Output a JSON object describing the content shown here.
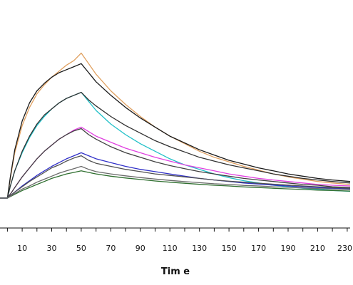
{
  "chart_data": {
    "type": "line",
    "title": "",
    "xlabel": "Tim e",
    "ylabel": "",
    "xlim": [
      -5,
      232
    ],
    "ylim": [
      -12,
      100
    ],
    "grid": false,
    "legend": "none",
    "x_ticks": [
      -10,
      0,
      10,
      20,
      30,
      40,
      50,
      60,
      70,
      80,
      90,
      100,
      110,
      120,
      130,
      140,
      150,
      160,
      170,
      180,
      190,
      200,
      210,
      220,
      230
    ],
    "x_tick_labels": [
      {
        "value": 10,
        "text": "10"
      },
      {
        "value": 30,
        "text": "30"
      },
      {
        "value": 50,
        "text": "50"
      },
      {
        "value": 70,
        "text": "70"
      },
      {
        "value": 90,
        "text": "90"
      },
      {
        "value": 110,
        "text": "110"
      },
      {
        "value": 130,
        "text": "130"
      },
      {
        "value": 150,
        "text": "150"
      },
      {
        "value": 170,
        "text": "170"
      },
      {
        "value": 190,
        "text": "190"
      },
      {
        "value": 210,
        "text": "210"
      },
      {
        "value": 230,
        "text": "230"
      }
    ],
    "series": [
      {
        "color": "#e0a060",
        "points": [
          [
            -5,
            0
          ],
          [
            0,
            0
          ],
          [
            2,
            13
          ],
          [
            5,
            30
          ],
          [
            10,
            48
          ],
          [
            15,
            60
          ],
          [
            20,
            69
          ],
          [
            25,
            75
          ],
          [
            30,
            80
          ],
          [
            35,
            84
          ],
          [
            40,
            88
          ],
          [
            45,
            91
          ],
          [
            50,
            96
          ],
          [
            55,
            89
          ],
          [
            60,
            82
          ],
          [
            70,
            71
          ],
          [
            80,
            62
          ],
          [
            90,
            54
          ],
          [
            100,
            47
          ],
          [
            110,
            41
          ],
          [
            120,
            36
          ],
          [
            130,
            31
          ],
          [
            140,
            27
          ],
          [
            150,
            24
          ],
          [
            160,
            21
          ],
          [
            170,
            18.5
          ],
          [
            180,
            16
          ],
          [
            190,
            14
          ],
          [
            200,
            12.5
          ],
          [
            210,
            11
          ],
          [
            220,
            10
          ],
          [
            232,
            9
          ]
        ]
      },
      {
        "color": "#1a1a1a",
        "points": [
          [
            -5,
            0
          ],
          [
            0,
            0
          ],
          [
            2,
            14
          ],
          [
            5,
            32
          ],
          [
            10,
            51
          ],
          [
            15,
            63
          ],
          [
            20,
            71
          ],
          [
            25,
            76
          ],
          [
            30,
            80
          ],
          [
            35,
            83
          ],
          [
            40,
            85
          ],
          [
            45,
            87
          ],
          [
            50,
            89
          ],
          [
            55,
            83
          ],
          [
            60,
            77
          ],
          [
            70,
            68
          ],
          [
            80,
            60
          ],
          [
            90,
            53
          ],
          [
            100,
            47
          ],
          [
            110,
            41
          ],
          [
            120,
            36.5
          ],
          [
            130,
            32
          ],
          [
            140,
            28.5
          ],
          [
            150,
            25
          ],
          [
            160,
            22.5
          ],
          [
            170,
            20
          ],
          [
            180,
            18
          ],
          [
            190,
            16
          ],
          [
            200,
            14.5
          ],
          [
            210,
            13
          ],
          [
            220,
            12
          ],
          [
            232,
            11
          ]
        ]
      },
      {
        "color": "#20c0c8",
        "points": [
          [
            -5,
            0
          ],
          [
            0,
            0
          ],
          [
            2,
            8
          ],
          [
            5,
            18
          ],
          [
            10,
            30
          ],
          [
            15,
            40
          ],
          [
            20,
            48
          ],
          [
            25,
            54
          ],
          [
            30,
            59
          ],
          [
            35,
            63
          ],
          [
            40,
            66
          ],
          [
            45,
            68
          ],
          [
            50,
            70
          ],
          [
            55,
            64
          ],
          [
            60,
            58
          ],
          [
            70,
            49
          ],
          [
            80,
            42
          ],
          [
            90,
            36
          ],
          [
            100,
            31
          ],
          [
            110,
            26
          ],
          [
            120,
            22
          ],
          [
            130,
            19
          ],
          [
            140,
            16
          ],
          [
            150,
            13.5
          ],
          [
            160,
            11.5
          ],
          [
            170,
            10
          ],
          [
            180,
            8.5
          ],
          [
            190,
            7.5
          ],
          [
            200,
            6.5
          ],
          [
            210,
            6
          ],
          [
            220,
            5
          ],
          [
            232,
            4.5
          ]
        ]
      },
      {
        "color": "#303030",
        "points": [
          [
            -5,
            0
          ],
          [
            0,
            0
          ],
          [
            2,
            8
          ],
          [
            5,
            18
          ],
          [
            10,
            31
          ],
          [
            15,
            41
          ],
          [
            20,
            49
          ],
          [
            25,
            55
          ],
          [
            30,
            59
          ],
          [
            35,
            63
          ],
          [
            40,
            66
          ],
          [
            45,
            68
          ],
          [
            50,
            70
          ],
          [
            55,
            65
          ],
          [
            60,
            61
          ],
          [
            70,
            54
          ],
          [
            80,
            48
          ],
          [
            90,
            43
          ],
          [
            100,
            38
          ],
          [
            110,
            34
          ],
          [
            120,
            30.5
          ],
          [
            130,
            27
          ],
          [
            140,
            24.5
          ],
          [
            150,
            22
          ],
          [
            160,
            20
          ],
          [
            170,
            18
          ],
          [
            180,
            16
          ],
          [
            190,
            14.5
          ],
          [
            200,
            13
          ],
          [
            210,
            12
          ],
          [
            220,
            11
          ],
          [
            232,
            10
          ]
        ]
      },
      {
        "color": "#e040e0",
        "points": [
          [
            -5,
            0
          ],
          [
            0,
            0
          ],
          [
            3,
            4
          ],
          [
            5,
            7
          ],
          [
            10,
            14
          ],
          [
            15,
            20
          ],
          [
            20,
            26
          ],
          [
            25,
            31
          ],
          [
            30,
            35
          ],
          [
            35,
            39
          ],
          [
            40,
            42
          ],
          [
            45,
            45
          ],
          [
            50,
            47
          ],
          [
            55,
            44
          ],
          [
            60,
            41
          ],
          [
            70,
            37
          ],
          [
            80,
            33
          ],
          [
            90,
            30
          ],
          [
            100,
            27
          ],
          [
            110,
            24.5
          ],
          [
            120,
            22
          ],
          [
            130,
            20
          ],
          [
            140,
            18
          ],
          [
            150,
            16
          ],
          [
            160,
            14.5
          ],
          [
            170,
            13
          ],
          [
            180,
            12
          ],
          [
            190,
            11
          ],
          [
            200,
            10
          ],
          [
            210,
            9
          ],
          [
            220,
            8.5
          ],
          [
            232,
            8
          ]
        ]
      },
      {
        "color": "#404040",
        "points": [
          [
            -5,
            0
          ],
          [
            0,
            0
          ],
          [
            3,
            4
          ],
          [
            5,
            7
          ],
          [
            10,
            14
          ],
          [
            15,
            20
          ],
          [
            20,
            26
          ],
          [
            25,
            31
          ],
          [
            30,
            35
          ],
          [
            35,
            39
          ],
          [
            40,
            42
          ],
          [
            45,
            44.5
          ],
          [
            50,
            46
          ],
          [
            55,
            42
          ],
          [
            60,
            39
          ],
          [
            70,
            34
          ],
          [
            80,
            30
          ],
          [
            90,
            27
          ],
          [
            100,
            24
          ],
          [
            110,
            21.5
          ],
          [
            120,
            19.5
          ],
          [
            130,
            17.5
          ],
          [
            140,
            16
          ],
          [
            150,
            14.5
          ],
          [
            160,
            13
          ],
          [
            170,
            12
          ],
          [
            180,
            11
          ],
          [
            190,
            10
          ],
          [
            200,
            9
          ],
          [
            210,
            8.5
          ],
          [
            220,
            7.5
          ],
          [
            232,
            7
          ]
        ]
      },
      {
        "color": "#3030c8",
        "points": [
          [
            -5,
            0
          ],
          [
            0,
            0
          ],
          [
            5,
            4
          ],
          [
            10,
            8
          ],
          [
            15,
            11.5
          ],
          [
            20,
            15
          ],
          [
            25,
            18
          ],
          [
            30,
            21
          ],
          [
            35,
            23.5
          ],
          [
            40,
            26
          ],
          [
            45,
            28
          ],
          [
            50,
            30
          ],
          [
            55,
            28
          ],
          [
            60,
            26
          ],
          [
            70,
            23.5
          ],
          [
            80,
            21
          ],
          [
            90,
            19
          ],
          [
            100,
            17.5
          ],
          [
            110,
            16
          ],
          [
            120,
            14.5
          ],
          [
            130,
            13
          ],
          [
            140,
            12
          ],
          [
            150,
            11
          ],
          [
            160,
            10
          ],
          [
            170,
            9.3
          ],
          [
            180,
            8.6
          ],
          [
            190,
            8
          ],
          [
            200,
            7.5
          ],
          [
            210,
            7
          ],
          [
            220,
            6.5
          ],
          [
            232,
            6
          ]
        ]
      },
      {
        "color": "#505050",
        "points": [
          [
            -5,
            0
          ],
          [
            0,
            0
          ],
          [
            5,
            4
          ],
          [
            10,
            7.5
          ],
          [
            15,
            11
          ],
          [
            20,
            14
          ],
          [
            25,
            17
          ],
          [
            30,
            20
          ],
          [
            35,
            22
          ],
          [
            40,
            24.5
          ],
          [
            45,
            26.5
          ],
          [
            50,
            28
          ],
          [
            55,
            25
          ],
          [
            60,
            23
          ],
          [
            70,
            21
          ],
          [
            80,
            19
          ],
          [
            90,
            17.5
          ],
          [
            100,
            16
          ],
          [
            110,
            15
          ],
          [
            120,
            14
          ],
          [
            130,
            13
          ],
          [
            140,
            12
          ],
          [
            150,
            11.2
          ],
          [
            160,
            10.5
          ],
          [
            170,
            9.8
          ],
          [
            180,
            9.2
          ],
          [
            190,
            8.6
          ],
          [
            200,
            8
          ],
          [
            210,
            7.5
          ],
          [
            220,
            7
          ],
          [
            232,
            6.5
          ]
        ]
      },
      {
        "color": "#2e6e2e",
        "points": [
          [
            -5,
            0
          ],
          [
            0,
            0
          ],
          [
            5,
            2.5
          ],
          [
            10,
            5
          ],
          [
            15,
            7
          ],
          [
            20,
            9
          ],
          [
            25,
            11
          ],
          [
            30,
            13
          ],
          [
            35,
            14.5
          ],
          [
            40,
            16
          ],
          [
            45,
            17
          ],
          [
            50,
            18
          ],
          [
            55,
            17
          ],
          [
            60,
            16
          ],
          [
            70,
            14.5
          ],
          [
            80,
            13.3
          ],
          [
            90,
            12.3
          ],
          [
            100,
            11.3
          ],
          [
            110,
            10.5
          ],
          [
            120,
            9.8
          ],
          [
            130,
            9.1
          ],
          [
            140,
            8.5
          ],
          [
            150,
            8
          ],
          [
            160,
            7.4
          ],
          [
            170,
            7
          ],
          [
            180,
            6.5
          ],
          [
            190,
            6.1
          ],
          [
            200,
            5.7
          ],
          [
            210,
            5.3
          ],
          [
            220,
            5
          ],
          [
            232,
            4.6
          ]
        ]
      },
      {
        "color": "#6a6a6a",
        "points": [
          [
            -5,
            0
          ],
          [
            0,
            0
          ],
          [
            5,
            3
          ],
          [
            10,
            6
          ],
          [
            15,
            8
          ],
          [
            20,
            10.5
          ],
          [
            25,
            12.5
          ],
          [
            30,
            14.5
          ],
          [
            35,
            16.5
          ],
          [
            40,
            18
          ],
          [
            45,
            19.5
          ],
          [
            50,
            21
          ],
          [
            55,
            19
          ],
          [
            60,
            17.5
          ],
          [
            70,
            16
          ],
          [
            80,
            14.7
          ],
          [
            90,
            13.6
          ],
          [
            100,
            12.6
          ],
          [
            110,
            11.7
          ],
          [
            120,
            10.9
          ],
          [
            130,
            10.2
          ],
          [
            140,
            9.5
          ],
          [
            150,
            9
          ],
          [
            160,
            8.4
          ],
          [
            170,
            8
          ],
          [
            180,
            7.5
          ],
          [
            190,
            7.1
          ],
          [
            200,
            6.7
          ],
          [
            210,
            6.3
          ],
          [
            220,
            6
          ],
          [
            232,
            5.6
          ]
        ]
      }
    ]
  }
}
